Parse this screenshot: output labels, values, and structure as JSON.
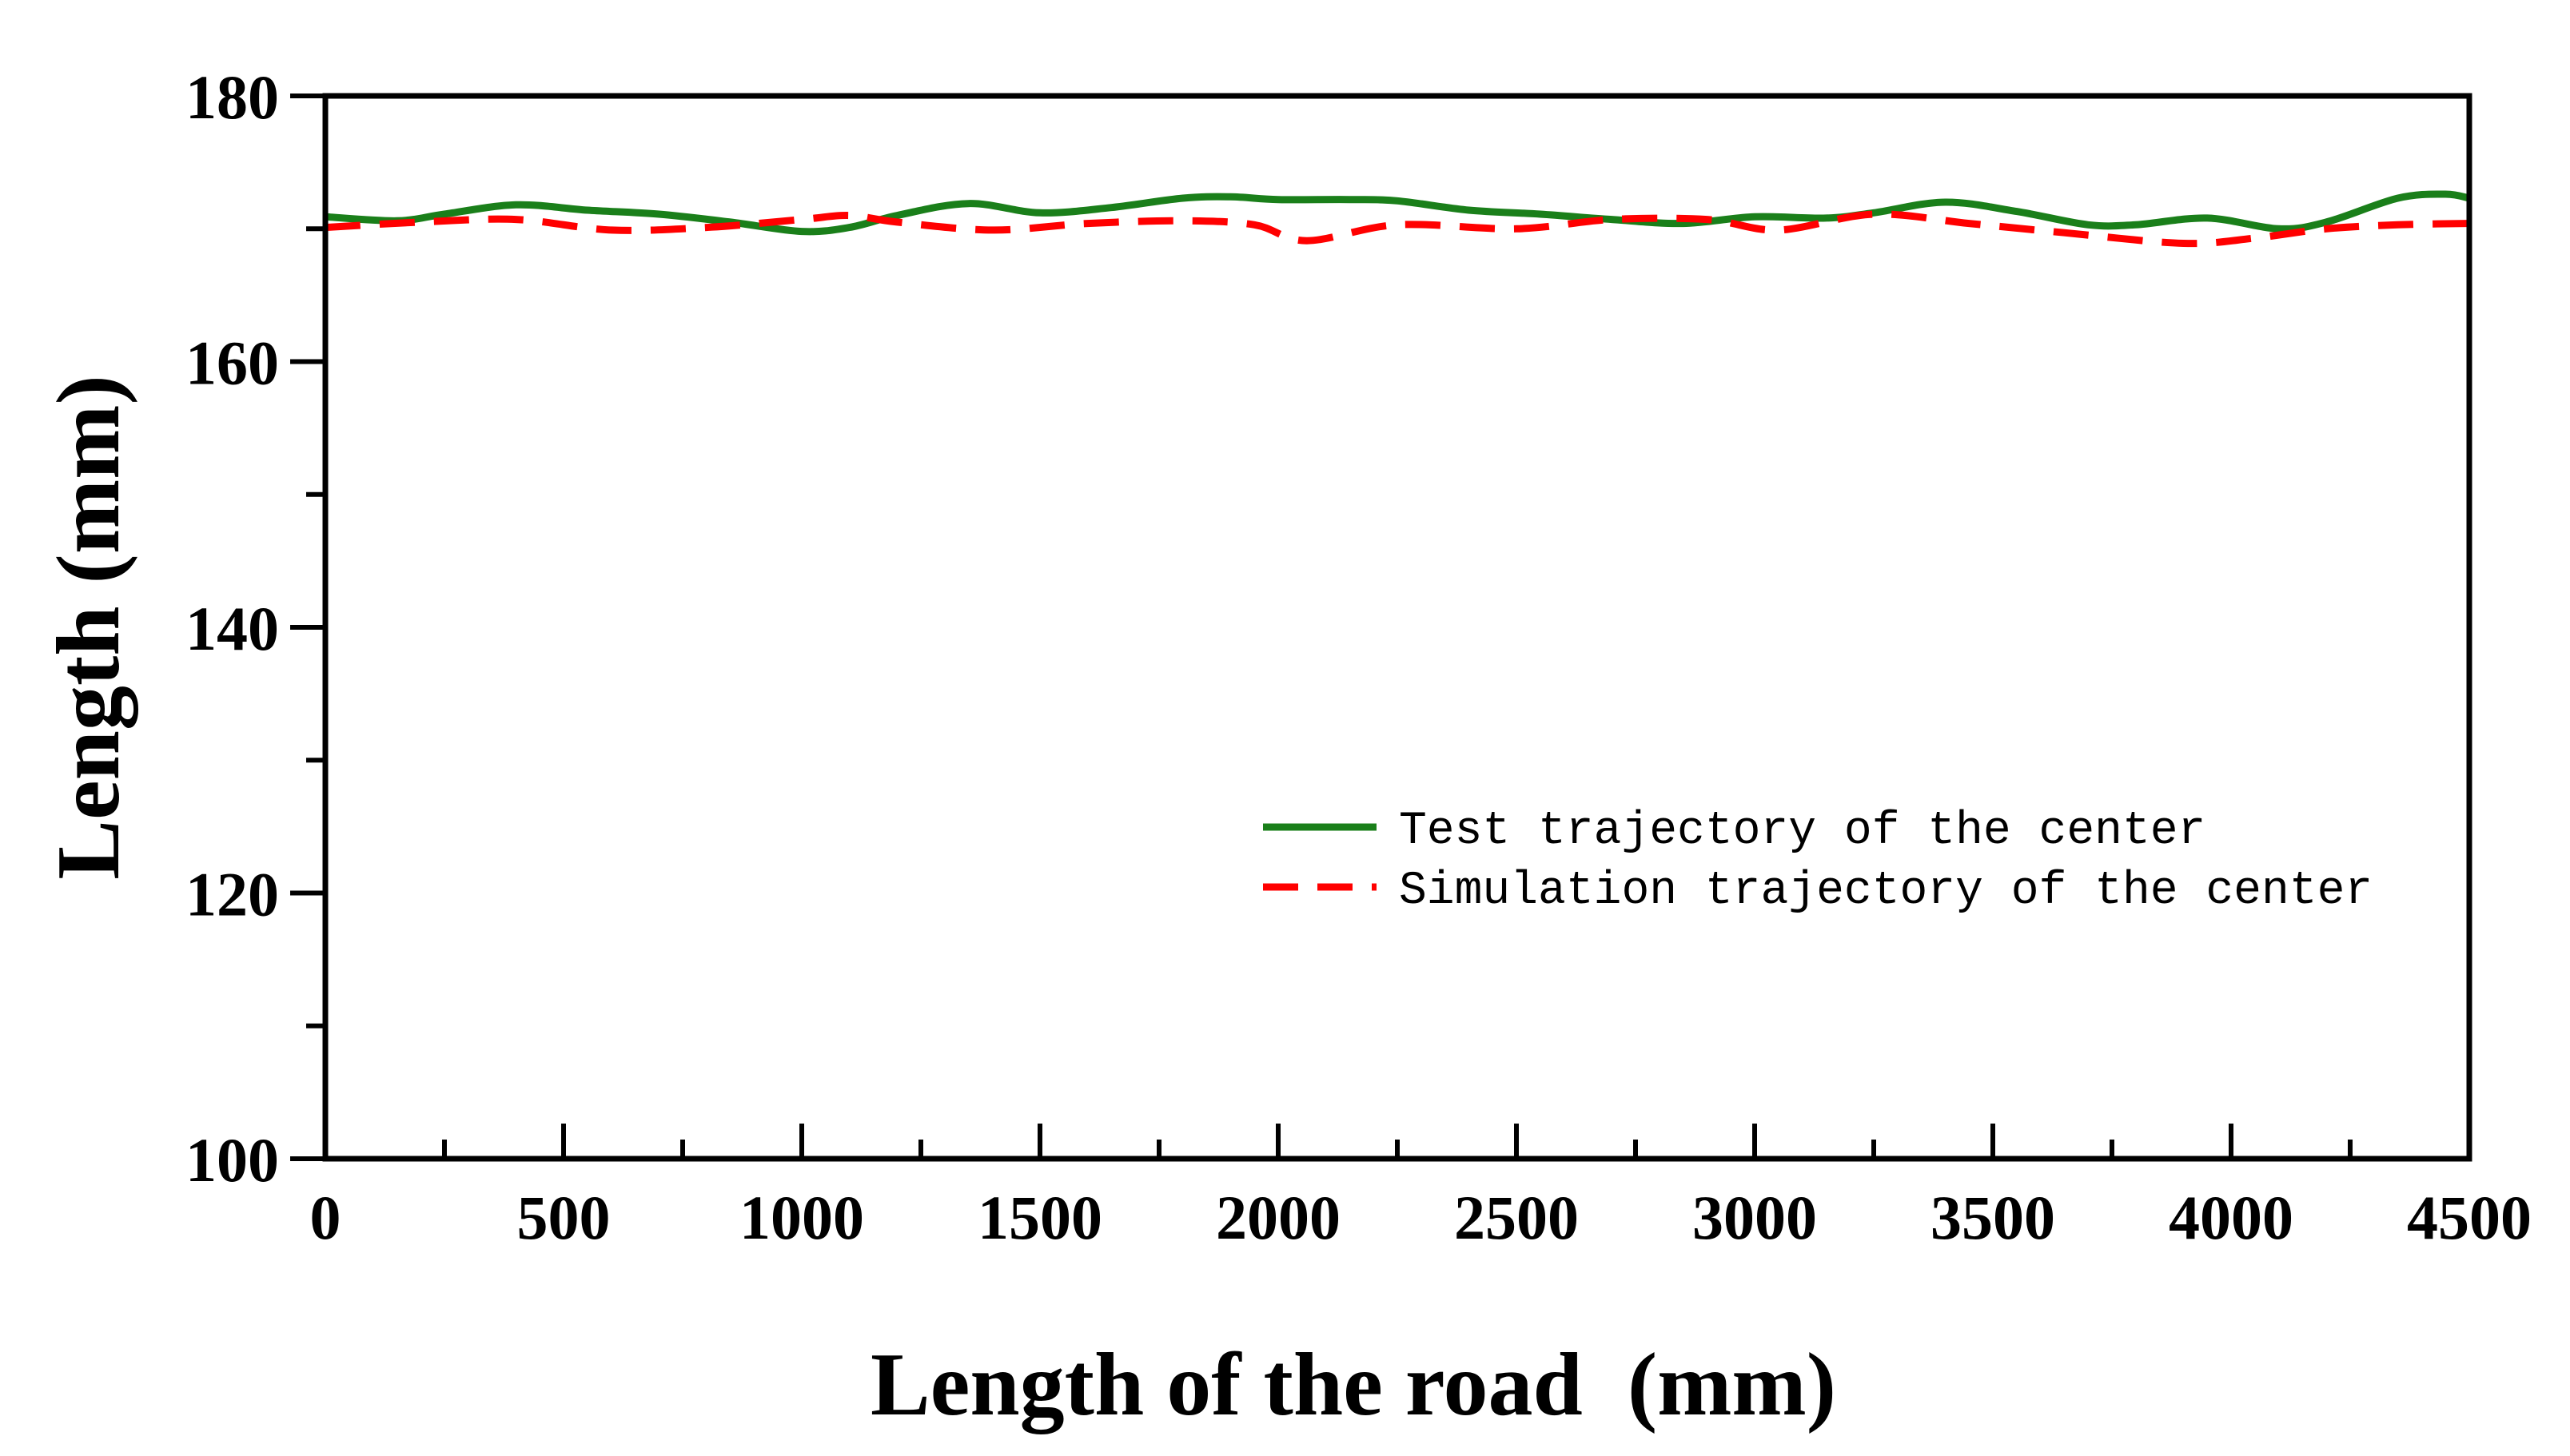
{
  "chart_data": {
    "type": "line",
    "title": "",
    "xlabel": "Length of the road  (mm)",
    "ylabel": "Length (mm)",
    "xlim": [
      0,
      4500
    ],
    "ylim": [
      100,
      180
    ],
    "x_ticks": [
      0,
      500,
      1000,
      1500,
      2000,
      2500,
      3000,
      3500,
      4000,
      4500
    ],
    "y_ticks": [
      100,
      120,
      140,
      160,
      180
    ],
    "x_minor_step": 250,
    "y_minor_step": 10,
    "grid": false,
    "legend_position": "right-middle",
    "series": [
      {
        "name": "Test trajectory of the center",
        "color": "#1a7f1a",
        "style": "solid",
        "x": [
          0,
          150,
          250,
          400,
          550,
          700,
          850,
          1000,
          1100,
          1200,
          1350,
          1500,
          1650,
          1800,
          1900,
          2000,
          2150,
          2250,
          2400,
          2550,
          2700,
          2850,
          3000,
          3150,
          3250,
          3400,
          3550,
          3700,
          3800,
          3950,
          4100,
          4200,
          4350,
          4450,
          4500
        ],
        "values": [
          170.9,
          170.6,
          171.1,
          171.8,
          171.4,
          171.1,
          170.5,
          169.8,
          170.1,
          171.0,
          171.9,
          171.2,
          171.6,
          172.3,
          172.4,
          172.2,
          172.2,
          172.1,
          171.4,
          171.1,
          170.7,
          170.4,
          170.9,
          170.8,
          171.2,
          172.0,
          171.3,
          170.3,
          170.3,
          170.8,
          170.0,
          170.5,
          172.3,
          172.6,
          172.3
        ]
      },
      {
        "name": "Simulation trajectory of the center",
        "color": "#ff0000",
        "style": "dashed",
        "x": [
          0,
          200,
          400,
          600,
          800,
          1000,
          1100,
          1200,
          1400,
          1600,
          1800,
          1950,
          2060,
          2250,
          2500,
          2700,
          2900,
          3050,
          3250,
          3450,
          3650,
          3900,
          4050,
          4200,
          4350,
          4500
        ],
        "values": [
          170.1,
          170.5,
          170.7,
          169.9,
          170.1,
          170.7,
          171.0,
          170.5,
          169.9,
          170.4,
          170.6,
          170.3,
          169.1,
          170.3,
          170.0,
          170.7,
          170.7,
          169.9,
          171.1,
          170.4,
          169.7,
          168.9,
          169.3,
          170.0,
          170.3,
          170.4
        ]
      }
    ]
  }
}
